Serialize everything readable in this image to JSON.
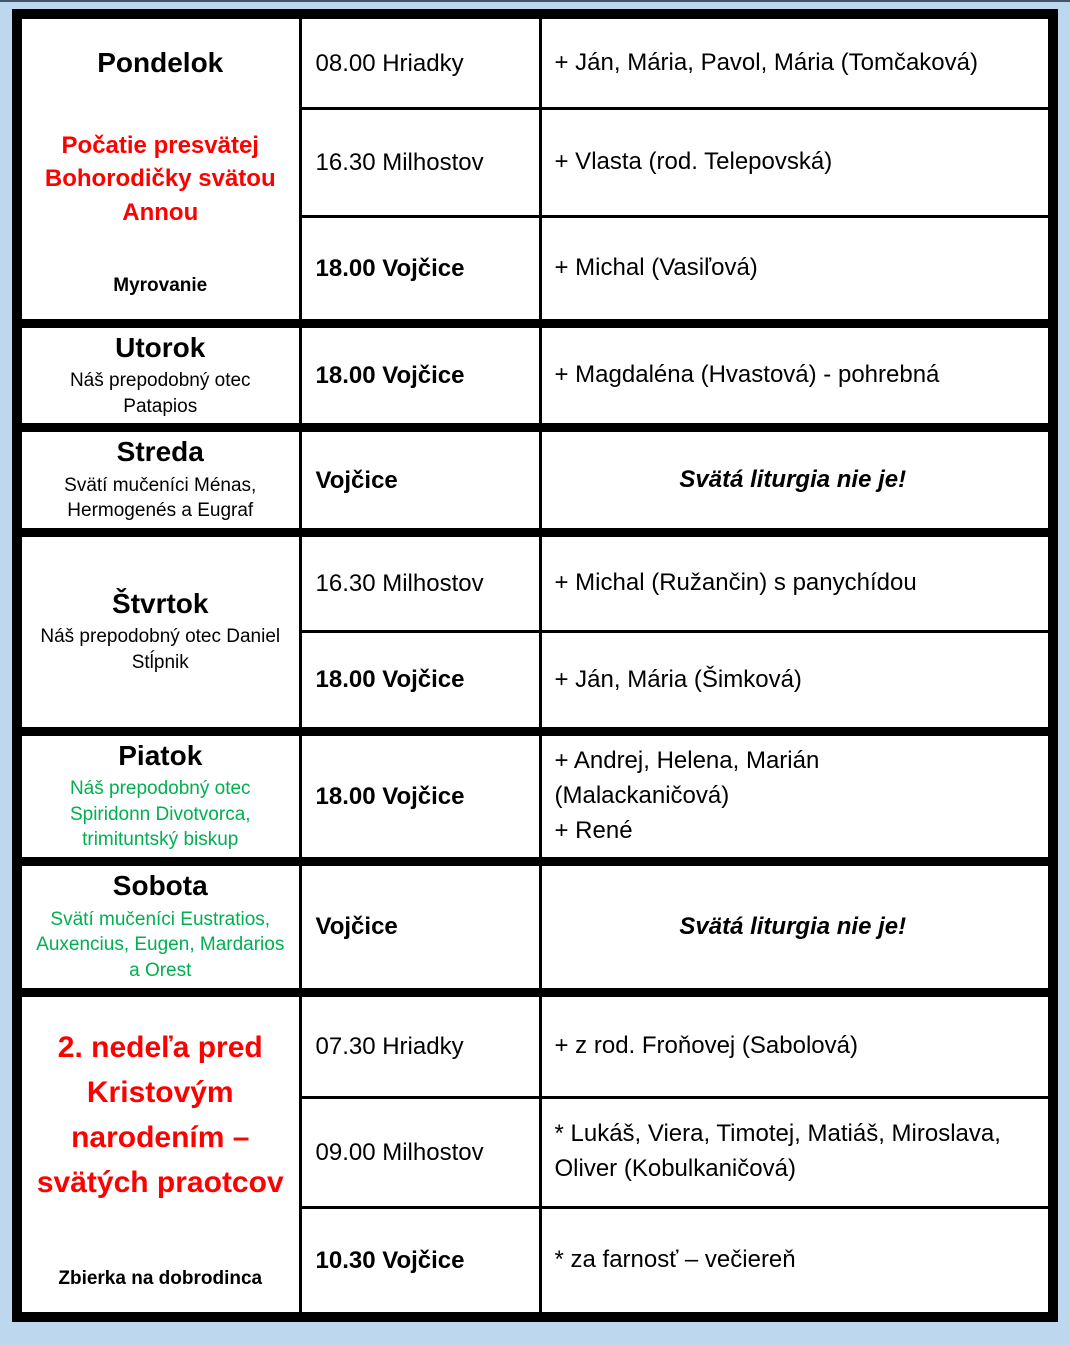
{
  "frame": {
    "background": "#bdd7ee",
    "border_color": "#000000",
    "top_edge_color": "#44546a"
  },
  "colors": {
    "red": "#ff0000",
    "green": "#00b050",
    "black": "#000000"
  },
  "days": [
    {
      "id": "pondelok",
      "title": "Pondelok",
      "title_color": "black",
      "title_size": "normal",
      "feast": "Počatie presvätej Bohorodičky svätou Annou",
      "feast_color": "red",
      "feast_bold": true,
      "note": "Myrovanie",
      "layout": "spread",
      "services": [
        {
          "time": "08.00 Hriadky",
          "time_bold": false,
          "intention": "+ Ján, Mária, Pavol, Mária (Tomčaková)",
          "notice": false
        },
        {
          "time": "16.30 Milhostov",
          "time_bold": false,
          "intention": "+ Vlasta (rod. Telepovská)",
          "notice": false
        },
        {
          "time": "18.00 Vojčice",
          "time_bold": true,
          "intention": "+ Michal (Vasiľová)",
          "notice": false
        }
      ]
    },
    {
      "id": "utorok",
      "title": "Utorok",
      "title_color": "black",
      "title_size": "normal",
      "feast": "Náš prepodobný otec Patapios",
      "feast_color": "black",
      "feast_bold": false,
      "note": null,
      "layout": "center",
      "services": [
        {
          "time": "18.00 Vojčice",
          "time_bold": true,
          "intention": "+ Magdaléna (Hvastová) - pohrebná",
          "notice": false
        }
      ]
    },
    {
      "id": "streda",
      "title": "Streda",
      "title_color": "black",
      "title_size": "normal",
      "feast": "Svätí mučeníci Ménas, Hermogenés a Eugraf",
      "feast_color": "black",
      "feast_bold": false,
      "note": null,
      "layout": "center",
      "services": [
        {
          "time": "Vojčice",
          "time_bold": true,
          "intention": "Svätá liturgia nie je!",
          "notice": true
        }
      ]
    },
    {
      "id": "stvrtok",
      "title": "Štvrtok",
      "title_color": "black",
      "title_size": "normal",
      "feast": "Náš prepodobný otec Daniel Stĺpnik",
      "feast_color": "black",
      "feast_bold": false,
      "note": null,
      "layout": "center",
      "services": [
        {
          "time": "16.30 Milhostov",
          "time_bold": false,
          "intention": "+ Michal (Ružančin) s panychídou",
          "notice": false
        },
        {
          "time": "18.00 Vojčice",
          "time_bold": true,
          "intention": "+ Ján, Mária (Šimková)",
          "notice": false
        }
      ]
    },
    {
      "id": "piatok",
      "title": "Piatok",
      "title_color": "black",
      "title_size": "normal",
      "feast": "Náš prepodobný otec Spiridonn Divotvorca, trimituntský biskup",
      "feast_color": "green",
      "feast_bold": false,
      "note": null,
      "layout": "center",
      "services": [
        {
          "time": "18.00 Vojčice",
          "time_bold": true,
          "intention": "+ Andrej, Helena, Marián\n(Malackaničová)\n+ René",
          "notice": false
        }
      ]
    },
    {
      "id": "sobota",
      "title": "Sobota",
      "title_color": "black",
      "title_size": "normal",
      "feast": "Svätí mučeníci Eustratios, Auxencius, Eugen, Mardarios a Orest",
      "feast_color": "green",
      "feast_bold": false,
      "note": null,
      "layout": "center",
      "services": [
        {
          "time": "Vojčice",
          "time_bold": true,
          "intention": "Svätá liturgia nie je!",
          "notice": true
        }
      ]
    },
    {
      "id": "nedela",
      "title": "2. nedeľa pred Kristovým narodením – svätých praotcov",
      "title_color": "red",
      "title_size": "large",
      "feast": null,
      "feast_bold": false,
      "note": "Zbierka na dobrodinca",
      "layout": "spread",
      "services": [
        {
          "time": "07.30 Hriadky",
          "time_bold": false,
          "intention": "+ z rod. Froňovej (Sabolová)",
          "notice": false
        },
        {
          "time": "09.00 Milhostov",
          "time_bold": false,
          "intention": "* Lukáš, Viera, Timotej, Matiáš, Miroslava, Oliver (Kobulkaničová)",
          "notice": false
        },
        {
          "time": "10.30 Vojčice",
          "time_bold": true,
          "intention": "* za farnosť – večiereň",
          "notice": false
        }
      ]
    }
  ]
}
